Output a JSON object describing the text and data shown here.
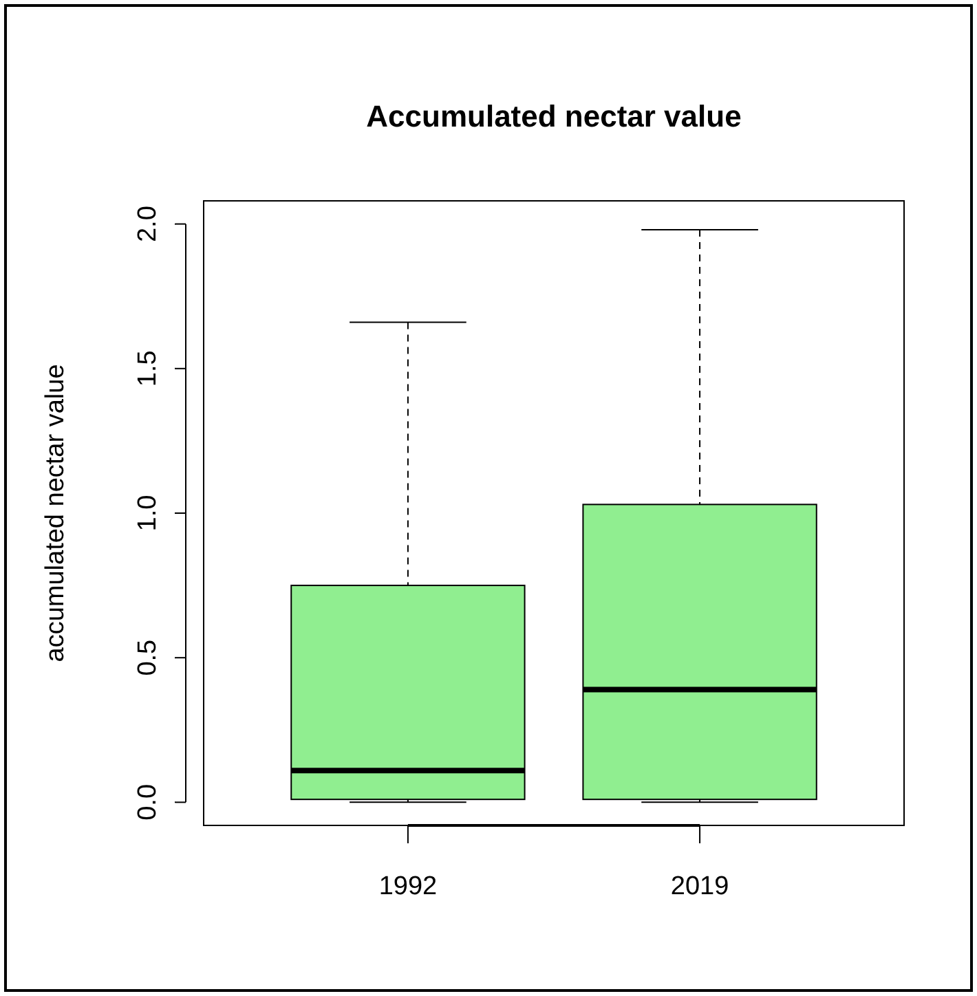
{
  "chart_data": {
    "type": "box",
    "title": "Accumulated nectar value",
    "ylabel": "accumulated nectar value",
    "categories": [
      "1992",
      "2019"
    ],
    "color": "#90ee90",
    "boxes": [
      {
        "low": 0,
        "q1": 0.01,
        "median": 0.11,
        "q3": 0.75,
        "high": 1.66
      },
      {
        "low": 0,
        "q1": 0.01,
        "median": 0.39,
        "q3": 1.03,
        "high": 1.98
      }
    ],
    "ylim": [
      -0.08,
      2.08
    ],
    "yticks": [
      {
        "value": 0,
        "label": "0.0"
      },
      {
        "value": 0.5,
        "label": "0.5"
      },
      {
        "value": 1,
        "label": "1.0"
      },
      {
        "value": 1.5,
        "label": "1.5"
      },
      {
        "value": 2,
        "label": "2.0"
      }
    ],
    "grid": false
  }
}
